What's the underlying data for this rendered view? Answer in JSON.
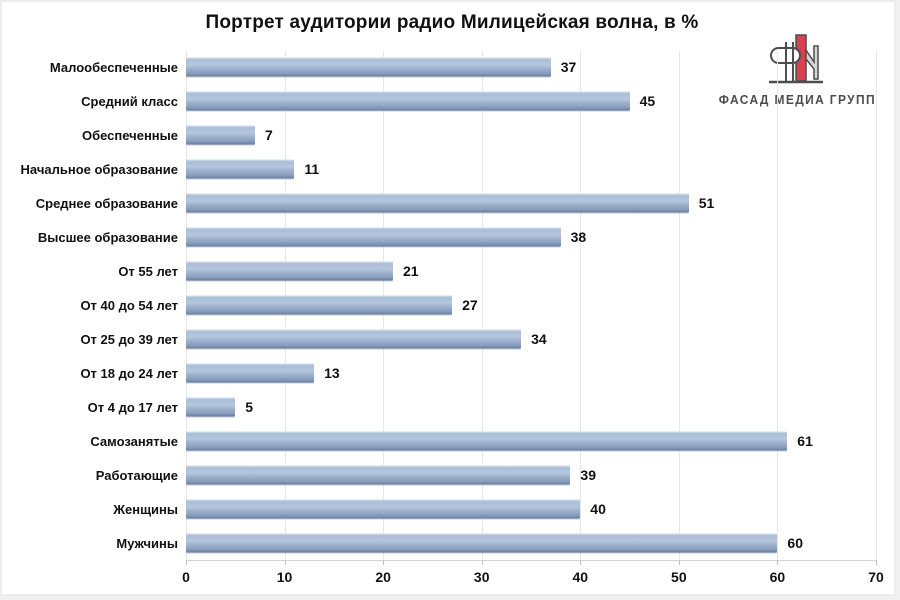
{
  "chart_data": {
    "type": "bar",
    "orientation": "horizontal",
    "title": "Портрет аудитории радио Милицейская волна, в %",
    "categories": [
      "Малообеспеченные",
      "Средний класс",
      "Обеспеченные",
      "Начальное образование",
      "Среднее образование",
      "Высшее образование",
      "От 55 лет",
      "От 40 до 54 лет",
      "От 25 до 39 лет",
      "От 18 до 24 лет",
      "От 4 до 17 лет",
      "Самозанятые",
      "Работающие",
      "Женщины",
      "Мужчины"
    ],
    "values": [
      37,
      45,
      7,
      11,
      51,
      38,
      21,
      27,
      34,
      13,
      5,
      61,
      39,
      40,
      60
    ],
    "xlabel": "",
    "ylabel": "",
    "xlim": [
      0,
      70
    ],
    "xticks": [
      0,
      10,
      20,
      30,
      40,
      50,
      60,
      70
    ],
    "grid": "vertical",
    "value_labels": true,
    "legend": "none",
    "bar_color": "#a3b8d4",
    "grid_color": "#e7e7e7",
    "label_color": "#111111"
  },
  "logo": {
    "text": "ФАСАД МЕДИА ГРУПП",
    "icon": "fm-monogram-icon",
    "accent_color": "#d8414f",
    "outline_color": "#4d4d4d",
    "silver_color": "#d9d9d9"
  }
}
